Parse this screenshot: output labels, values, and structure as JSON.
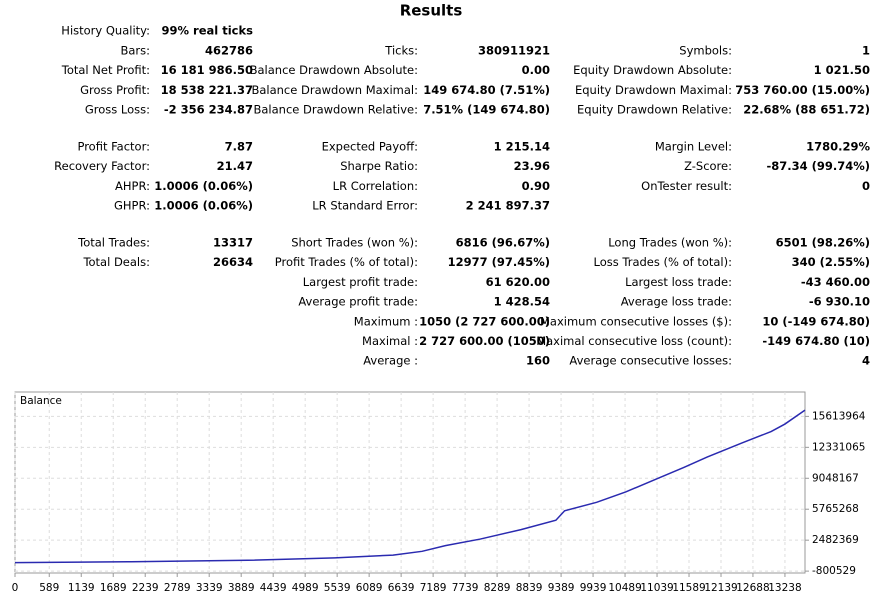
{
  "title": "Results",
  "groups": [
    [
      [
        "History Quality:",
        "99% real ticks",
        null,
        null,
        null,
        null
      ]
    ],
    [
      [
        "Bars:",
        "462786",
        "Ticks:",
        "380911921",
        "Symbols:",
        "1"
      ],
      [
        "Total Net Profit:",
        "16 181 986.50",
        "Balance Drawdown Absolute:",
        "0.00",
        "Equity Drawdown Absolute:",
        "1 021.50"
      ],
      [
        "Gross Profit:",
        "18 538 221.37",
        "Balance Drawdown Maximal:",
        "149 674.80 (7.51%)",
        "Equity Drawdown Maximal:",
        "753 760.00 (15.00%)"
      ],
      [
        "Gross Loss:",
        "-2 356 234.87",
        "Balance Drawdown Relative:",
        "7.51% (149 674.80)",
        "Equity Drawdown Relative:",
        "22.68% (88 651.72)"
      ]
    ],
    [
      [
        "Profit Factor:",
        "7.87",
        "Expected Payoff:",
        "1 215.14",
        "Margin Level:",
        "1780.29%"
      ],
      [
        "Recovery Factor:",
        "21.47",
        "Sharpe Ratio:",
        "23.96",
        "Z-Score:",
        "-87.34 (99.74%)"
      ],
      [
        "AHPR:",
        "1.0006 (0.06%)",
        "LR Correlation:",
        "0.90",
        "OnTester result:",
        "0"
      ],
      [
        "GHPR:",
        "1.0006 (0.06%)",
        "LR Standard Error:",
        "2 241 897.37",
        null,
        null
      ]
    ],
    [
      [
        "Total Trades:",
        "13317",
        "Short Trades (won %):",
        "6816 (96.67%)",
        "Long Trades (won %):",
        "6501 (98.26%)"
      ],
      [
        "Total Deals:",
        "26634",
        "Profit Trades (% of total):",
        "12977 (97.45%)",
        "Loss Trades (% of total):",
        "340 (2.55%)"
      ],
      [
        null,
        null,
        "Largest profit trade:",
        "61 620.00",
        "Largest loss trade:",
        "-43 460.00"
      ],
      [
        null,
        null,
        "Average profit trade:",
        "1 428.54",
        "Average loss trade:",
        "-6 930.10"
      ],
      [
        null,
        null,
        "Maximum :",
        "1050 (2 727 600.00)",
        "Maximum consecutive losses ($):",
        "10 (-149 674.80)"
      ],
      [
        null,
        null,
        "Maximal :",
        "2 727 600.00 (1050)",
        "Maximal consecutive loss (count):",
        "-149 674.80 (10)"
      ],
      [
        null,
        null,
        "Average :",
        "160",
        "Average consecutive losses:",
        "4"
      ]
    ]
  ],
  "chart_data": {
    "type": "line",
    "title": "Balance",
    "x": [
      0,
      2000,
      4000,
      5500,
      6500,
      7000,
      7400,
      8000,
      8700,
      9300,
      9450,
      10000,
      10500,
      11000,
      11500,
      11900,
      12500,
      13000,
      13238,
      13583
    ],
    "series": [
      {
        "name": "Balance",
        "color": "#2a2ab0",
        "values": [
          100000,
          200000,
          350000,
          600000,
          900000,
          1300000,
          1900000,
          2600000,
          3600000,
          4600000,
          5600000,
          6500000,
          7600000,
          8900000,
          10200000,
          11300000,
          12800000,
          14000000,
          14800000,
          16280000
        ]
      }
    ],
    "xlim": [
      0,
      13583
    ],
    "ylim": [
      -1000000,
      18200000
    ],
    "xticks": [
      0,
      589,
      1139,
      1689,
      2239,
      2789,
      3339,
      3889,
      4439,
      4989,
      5539,
      6089,
      6639,
      7189,
      7739,
      8289,
      8839,
      9389,
      9939,
      10489,
      11039,
      11589,
      12139,
      12688,
      13238
    ],
    "yticks": [
      -800529,
      2482369,
      5765268,
      9048167,
      12331065,
      15613964
    ],
    "grid": true
  }
}
